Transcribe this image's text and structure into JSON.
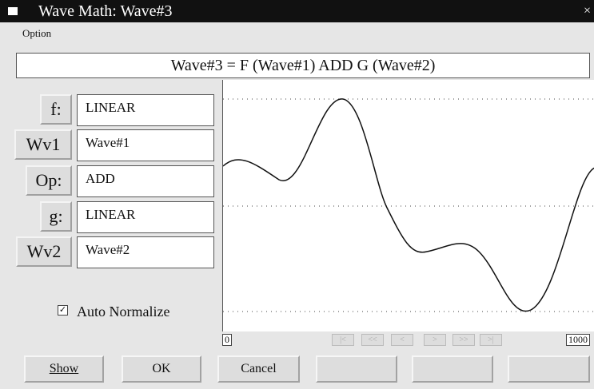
{
  "window": {
    "title": "Wave Math: Wave#3",
    "close": "×"
  },
  "menu": [
    "Option"
  ],
  "formula": "Wave#3 = F (Wave#1) ADD G (Wave#2)",
  "rows": [
    {
      "label": "f:",
      "value": "LINEAR"
    },
    {
      "label": "Wv1",
      "value": "Wave#1"
    },
    {
      "label": "Op:",
      "value": "ADD"
    },
    {
      "label": "g:",
      "value": "LINEAR"
    },
    {
      "label": "Wv2",
      "value": "Wave#2"
    }
  ],
  "checkbox": {
    "label": "Auto Normalize",
    "mark": "✓"
  },
  "range": {
    "start": "0",
    "end": "1000"
  },
  "nav": [
    "|<",
    "<<",
    "<",
    ">",
    ">>",
    ">|"
  ],
  "buttons": [
    "Show",
    "OK",
    "Cancel"
  ]
}
